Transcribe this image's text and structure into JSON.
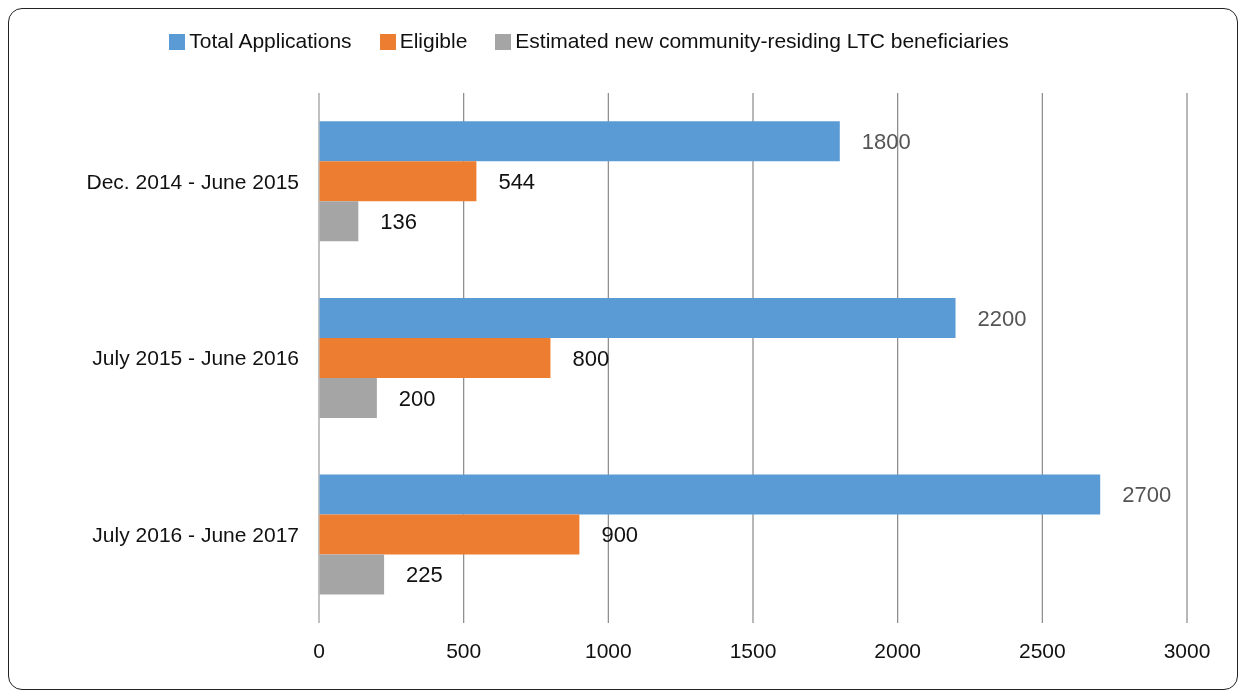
{
  "chart_data": {
    "type": "bar",
    "orientation": "horizontal",
    "categories": [
      "Dec. 2014 - June 2015",
      "July 2015 - June 2016",
      "July 2016 - June 2017"
    ],
    "series": [
      {
        "name": "Total Applications",
        "color": "#5b9bd5",
        "values": [
          1800,
          2200,
          2700
        ]
      },
      {
        "name": "Eligible",
        "color": "#ed7d31",
        "values": [
          544,
          800,
          900
        ]
      },
      {
        "name": "Estimated new community-residing LTC beneficiaries",
        "color": "#a5a5a5",
        "values": [
          136,
          200,
          225
        ]
      }
    ],
    "xlim": [
      0,
      3000
    ],
    "xticks": [
      0,
      500,
      1000,
      1500,
      2000,
      2500,
      3000
    ],
    "grid": "x",
    "legend": "top",
    "data_labels": true
  }
}
